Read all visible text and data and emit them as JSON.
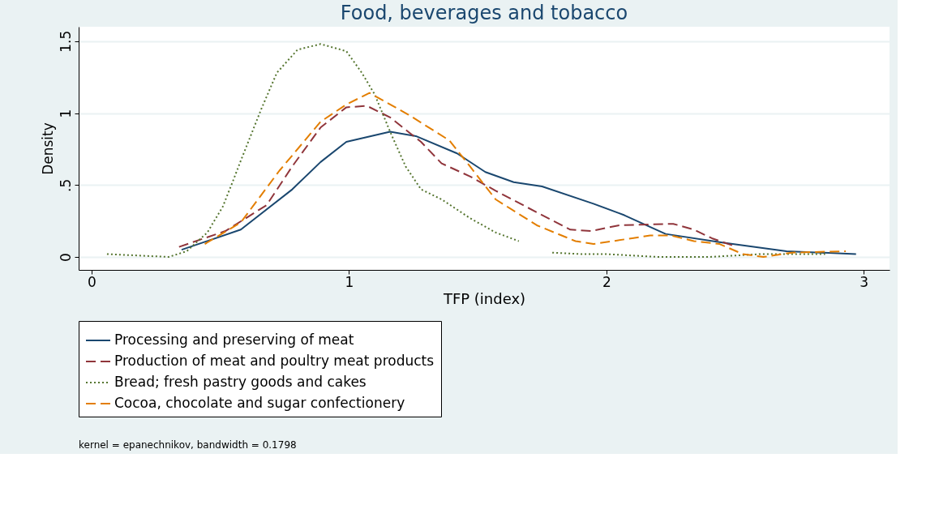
{
  "chart_data": {
    "type": "line",
    "title": "Food, beverages and tobacco",
    "xlabel": "TFP (index)",
    "ylabel": "Density",
    "xlim": [
      -0.05,
      3.1
    ],
    "xticks": [
      0,
      1,
      2,
      3
    ],
    "ylim": [
      -0.09,
      1.6
    ],
    "yticks": [
      0,
      {
        "value": 0.5,
        "label": ".5"
      },
      1,
      1.5
    ],
    "grid": "y",
    "legend": "bottom",
    "annotations": [
      "kernel = epanechnikov, bandwidth = 0.1798"
    ],
    "series": [
      {
        "name": "Processing and preserving of meat",
        "color": "#1a476f",
        "line_style": "solid",
        "x": [
          0.35,
          0.58,
          0.78,
          0.89,
          0.99,
          1.16,
          1.26,
          1.42,
          1.53,
          1.64,
          1.75,
          1.95,
          2.07,
          2.23,
          2.45,
          2.7,
          2.97
        ],
        "values": [
          0.05,
          0.19,
          0.47,
          0.66,
          0.8,
          0.87,
          0.84,
          0.72,
          0.59,
          0.52,
          0.49,
          0.37,
          0.29,
          0.16,
          0.1,
          0.04,
          0.02
        ]
      },
      {
        "name": "Production of meat and poultry meat products",
        "color": "#90353b",
        "line_style": "dashed",
        "x": [
          0.34,
          0.52,
          0.68,
          0.78,
          0.89,
          0.99,
          1.07,
          1.16,
          1.28,
          1.36,
          1.47,
          1.57,
          1.73,
          1.86,
          1.94,
          2.05,
          2.26,
          2.34,
          2.41,
          2.49
        ],
        "values": [
          0.07,
          0.18,
          0.36,
          0.63,
          0.9,
          1.04,
          1.05,
          0.97,
          0.8,
          0.65,
          0.56,
          0.46,
          0.31,
          0.19,
          0.18,
          0.22,
          0.23,
          0.19,
          0.13,
          0.08
        ]
      },
      {
        "name": "Bread; fresh pastry goods and cakes",
        "color": "#55752f",
        "line_style": "dotted",
        "x": [
          0.06,
          0.3,
          0.37,
          0.45,
          0.51,
          0.55,
          0.58,
          0.66,
          0.72,
          0.8,
          0.89,
          0.99,
          1.05,
          1.1,
          1.16,
          1.22,
          1.28,
          1.36,
          1.47,
          1.57,
          1.66,
          1.72,
          1.79,
          1.9,
          2.0,
          2.2,
          2.4,
          2.6,
          2.85
        ],
        "values": [
          0.02,
          0.0,
          0.04,
          0.17,
          0.35,
          0.53,
          0.67,
          1.03,
          1.28,
          1.44,
          1.48,
          1.43,
          1.28,
          1.13,
          0.87,
          0.63,
          0.47,
          0.4,
          0.27,
          0.17,
          0.11,
          null,
          0.03,
          0.02,
          0.02,
          0.0,
          0.0,
          0.02,
          0.02
        ]
      },
      {
        "name": "Cocoa, chocolate and sugar confectionery",
        "color": "#e37e00",
        "line_style": "dashed",
        "x": [
          0.44,
          0.58,
          0.73,
          0.89,
          0.99,
          1.08,
          1.23,
          1.39,
          1.47,
          1.57,
          1.73,
          1.88,
          1.95,
          2.1,
          2.17,
          2.25,
          2.34,
          2.44,
          2.53,
          2.61,
          2.72,
          2.93
        ],
        "values": [
          0.09,
          0.24,
          0.6,
          0.94,
          1.06,
          1.14,
          0.99,
          0.81,
          0.63,
          0.4,
          0.22,
          0.11,
          0.09,
          0.13,
          0.15,
          0.15,
          0.11,
          0.09,
          0.02,
          0.0,
          0.03,
          0.04
        ]
      }
    ]
  }
}
